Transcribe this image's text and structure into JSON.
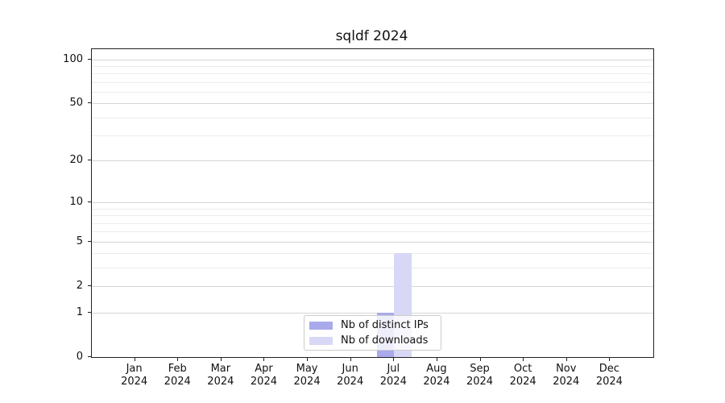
{
  "chart_data": {
    "type": "bar",
    "title": "sqldf 2024",
    "categories": [
      "Jan",
      "Feb",
      "Mar",
      "Apr",
      "May",
      "Jun",
      "Jul",
      "Aug",
      "Sep",
      "Oct",
      "Nov",
      "Dec"
    ],
    "year_label": "2024",
    "series": [
      {
        "name": "Nb of distinct IPs",
        "color": "#a9a9ec",
        "values": [
          0,
          0,
          0,
          0,
          0,
          0,
          1,
          0,
          0,
          0,
          0,
          0
        ]
      },
      {
        "name": "Nb of downloads",
        "color": "#d8d8f6",
        "values": [
          0,
          0,
          0,
          0,
          0,
          0,
          4,
          0,
          0,
          0,
          0,
          0
        ]
      }
    ],
    "yscale": "log1p",
    "ylim": [
      0,
      117.5
    ],
    "y_ticks": [
      0,
      1,
      2,
      5,
      10,
      20,
      50,
      100
    ],
    "y_minor_gridlines": [
      3,
      4,
      6,
      7,
      8,
      9,
      30,
      40,
      60,
      70,
      80,
      90
    ],
    "grid": "horizontal",
    "legend_position": "lower center",
    "frame_color": "#222222",
    "major_grid_color": "#d6d6d6",
    "minor_grid_color": "#ececec",
    "xlabel": "",
    "ylabel": ""
  }
}
